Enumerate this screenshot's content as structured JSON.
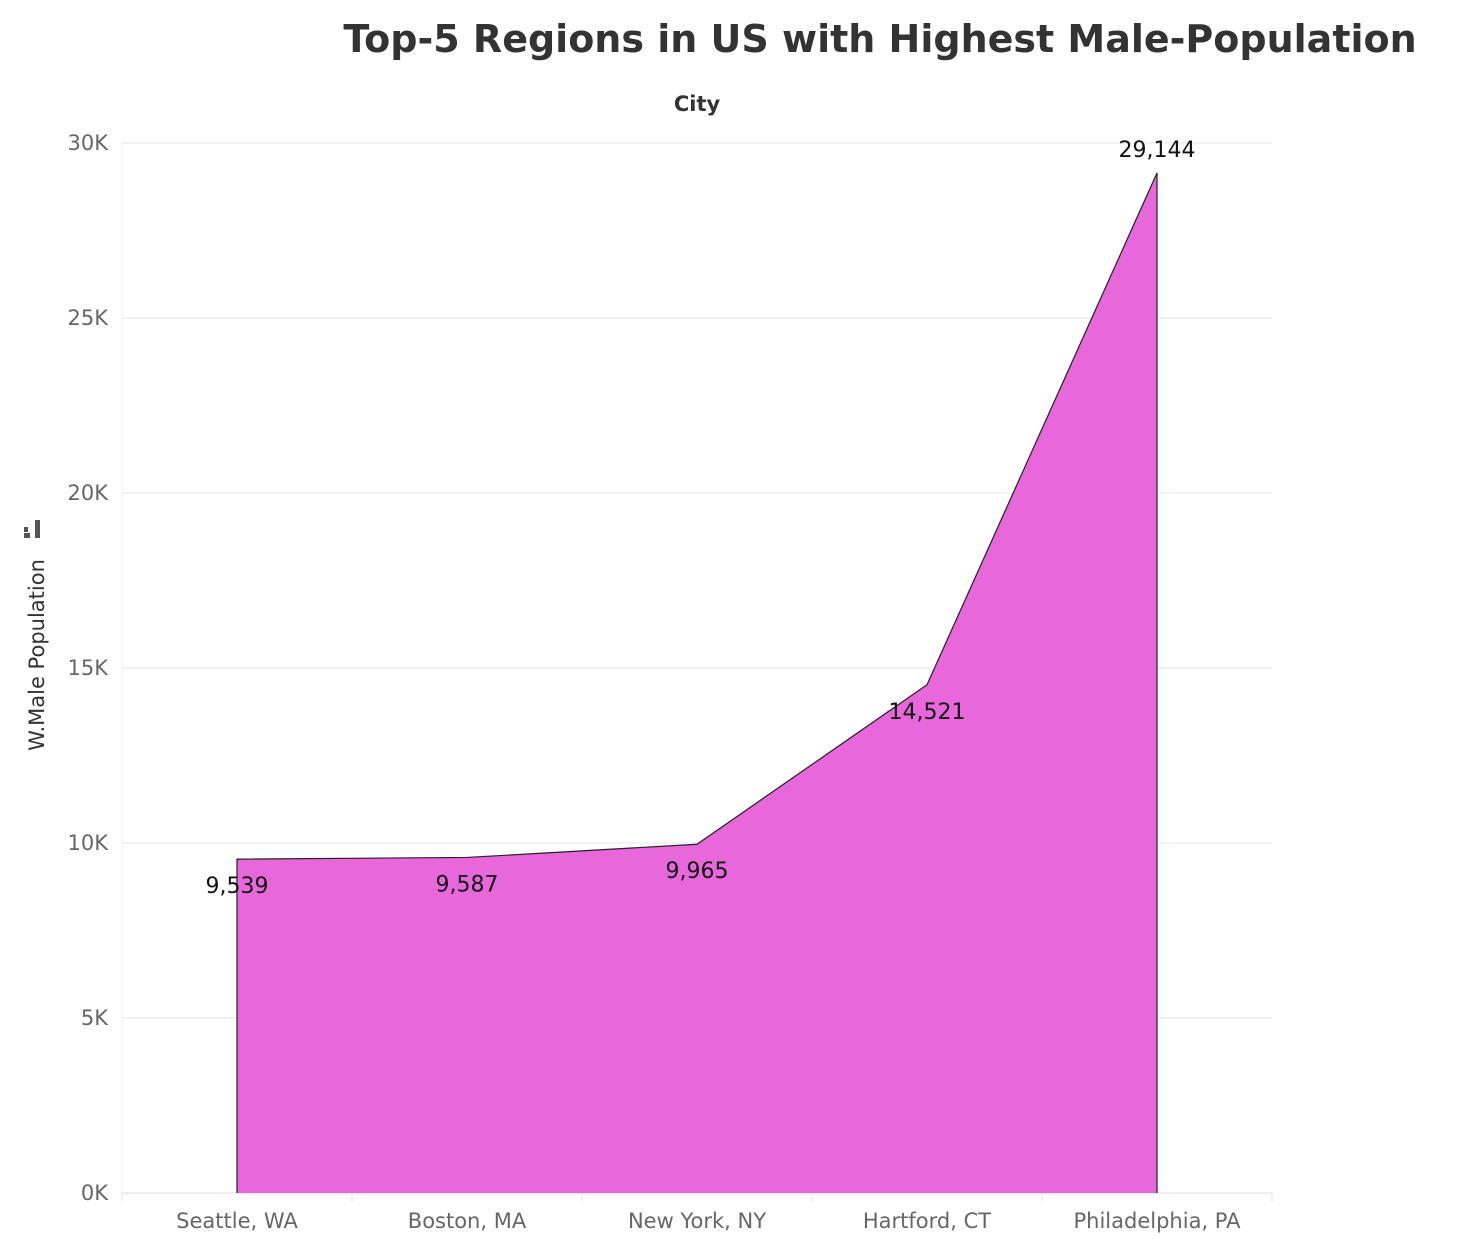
{
  "chart_data": {
    "type": "area",
    "title": "Top-5 Regions in US with Highest Male-Population",
    "column_header": "City",
    "xlabel": "",
    "ylabel": "W.Male Population",
    "categories": [
      "Seattle, WA",
      "Boston, MA",
      "New York, NY",
      "Hartford, CT",
      "Philadelphia, PA"
    ],
    "series": [
      {
        "values": [
          9539,
          9587,
          9965,
          14521,
          29144
        ]
      }
    ],
    "data_labels": [
      "9,539",
      "9,587",
      "9,965",
      "14,521",
      "29,144"
    ],
    "ylim": [
      0,
      30000
    ],
    "yticks": [
      0,
      5000,
      10000,
      15000,
      20000,
      25000,
      30000
    ],
    "ytick_labels": [
      "0K",
      "5K",
      "10K",
      "15K",
      "20K",
      "25K",
      "30K"
    ],
    "grid": true,
    "legend": "none",
    "fill_color": "#e557d6",
    "line_color": "#222222"
  }
}
